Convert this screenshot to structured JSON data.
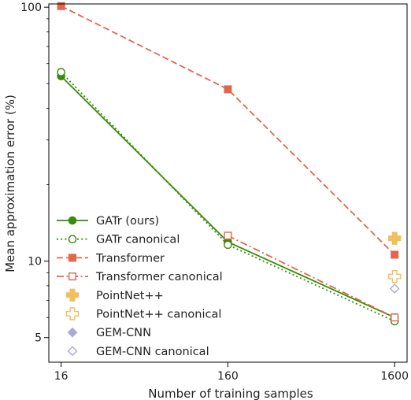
{
  "chart_data": {
    "type": "line",
    "xlabel": "Number of training samples",
    "ylabel": "Mean approximation error (%)",
    "x_scale": "log",
    "y_scale": "log",
    "xlim": [
      13.5,
      1900
    ],
    "ylim": [
      4.0,
      103
    ],
    "x_ticks": [
      16,
      160,
      1600
    ],
    "x_tick_labels": [
      "16",
      "160",
      "1600"
    ],
    "y_ticks": [
      5,
      10,
      100
    ],
    "y_tick_labels": [
      "5",
      "10",
      "100"
    ],
    "grid": false,
    "legend_position": "lower-left",
    "series": [
      {
        "name": "GATr (ours)",
        "x": [
          16,
          160,
          1600
        ],
        "y": [
          53.5,
          11.9,
          6.0
        ],
        "color": "#3a8a0c",
        "line": "solid",
        "marker": "circle",
        "filled": true
      },
      {
        "name": "GATr canonical",
        "x": [
          16,
          160,
          1600
        ],
        "y": [
          55.5,
          11.6,
          5.8
        ],
        "color": "#3a8a0c",
        "line": "dotted",
        "marker": "circle",
        "filled": false
      },
      {
        "name": "Transformer",
        "x": [
          16,
          160,
          1600
        ],
        "y": [
          101,
          47.5,
          10.6
        ],
        "color": "#e0674d",
        "line": "dashed",
        "marker": "square",
        "filled": true
      },
      {
        "name": "Transformer canonical",
        "x": [
          16,
          160,
          1600
        ],
        "y": [
          null,
          12.6,
          6.0
        ],
        "color": "#e0674d",
        "line": "dashdot",
        "marker": "square",
        "filled": false
      },
      {
        "name": "PointNet++",
        "x": [
          1600
        ],
        "y": [
          12.3
        ],
        "color": "#f0c05c",
        "line": "none",
        "marker": "plus",
        "filled": true
      },
      {
        "name": "PointNet++ canonical",
        "x": [
          1600
        ],
        "y": [
          8.7
        ],
        "color": "#f0c05c",
        "line": "none",
        "marker": "plus",
        "filled": false
      },
      {
        "name": "GEM-CNN",
        "x": [
          1600
        ],
        "y": [
          null
        ],
        "color": "#aaa9d8",
        "line": "none",
        "marker": "diamond",
        "filled": true
      },
      {
        "name": "GEM-CNN canonical",
        "x": [
          1600
        ],
        "y": [
          7.8
        ],
        "color": "#aaa9d8",
        "line": "none",
        "marker": "diamond",
        "filled": false
      }
    ]
  }
}
